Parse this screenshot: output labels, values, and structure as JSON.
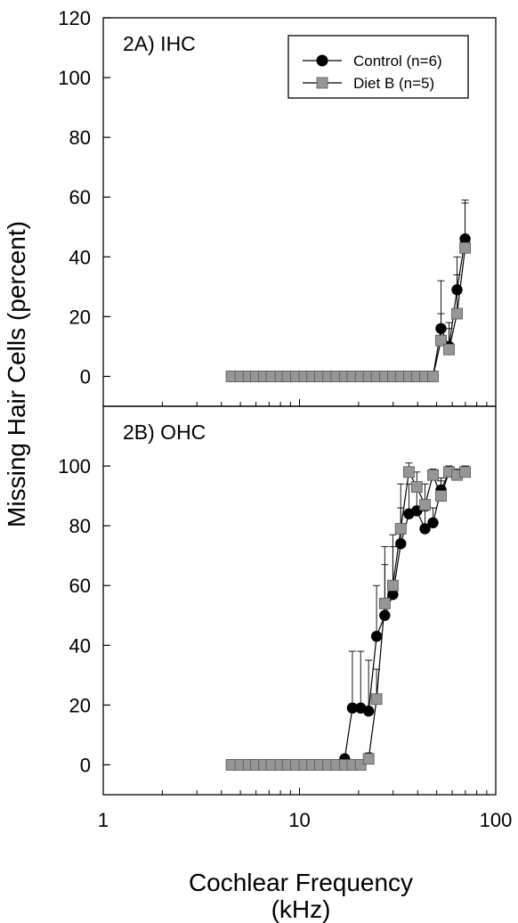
{
  "chart_data": [
    {
      "type": "line",
      "panel_label": "2A) IHC",
      "xscale": "log",
      "xlim": [
        1,
        100
      ],
      "ylim": [
        -10,
        120
      ],
      "yticks": [
        0,
        20,
        40,
        60,
        80,
        100,
        120
      ],
      "grid": false,
      "legend_position": "top-right",
      "series": [
        {
          "name": "Control (n=6)",
          "marker": "circle",
          "color": "#000000",
          "x": [
            4.5,
            5.0,
            5.5,
            6.0,
            6.6,
            7.2,
            8.0,
            8.7,
            9.6,
            10.6,
            11.6,
            12.7,
            14.0,
            15.4,
            17.0,
            18.6,
            20.5,
            22.5,
            24.7,
            27.2,
            29.9,
            32.8,
            36.1,
            39.6,
            43.6,
            47.9,
            52.6,
            57.8,
            63.5,
            69.8
          ],
          "y": [
            0,
            0,
            0,
            0,
            0,
            0,
            0,
            0,
            0,
            0,
            0,
            0,
            0,
            0,
            0,
            0,
            0,
            0,
            0,
            0,
            0,
            0,
            0,
            0,
            0,
            0,
            16,
            10,
            29,
            46
          ],
          "err": [
            0,
            0,
            0,
            0,
            0,
            0,
            0,
            0,
            0,
            0,
            0,
            0,
            0,
            0,
            0,
            0,
            0,
            0,
            0,
            0,
            0,
            0,
            0,
            0,
            0,
            0,
            16,
            8,
            11,
            13
          ]
        },
        {
          "name": "Diet B (n=5)",
          "marker": "square",
          "color": "#969696",
          "x": [
            4.5,
            5.0,
            5.5,
            6.0,
            6.6,
            7.2,
            8.0,
            8.7,
            9.6,
            10.6,
            11.6,
            12.7,
            14.0,
            15.4,
            17.0,
            18.6,
            20.5,
            22.5,
            24.7,
            27.2,
            29.9,
            32.8,
            36.1,
            39.6,
            43.6,
            47.9,
            52.6,
            57.8,
            63.5,
            69.8
          ],
          "y": [
            0,
            0,
            0,
            0,
            0,
            0,
            0,
            0,
            0,
            0,
            0,
            0,
            0,
            0,
            0,
            0,
            0,
            0,
            0,
            0,
            0,
            0,
            0,
            0,
            0,
            0,
            12,
            9,
            21,
            43
          ],
          "err": [
            0,
            0,
            0,
            0,
            0,
            0,
            0,
            0,
            0,
            0,
            0,
            0,
            0,
            0,
            0,
            0,
            0,
            0,
            0,
            0,
            0,
            0,
            0,
            0,
            0,
            0,
            9,
            7,
            13,
            15
          ]
        }
      ]
    },
    {
      "type": "line",
      "panel_label": "2B) OHC",
      "xscale": "log",
      "xlim": [
        1,
        100
      ],
      "ylim": [
        -10,
        120
      ],
      "yticks": [
        0,
        20,
        40,
        60,
        80,
        100
      ],
      "xticks": [
        1,
        10,
        100
      ],
      "xtick_labels": [
        "1",
        "10",
        "100"
      ],
      "grid": false,
      "series": [
        {
          "name": "Control (n=6)",
          "marker": "circle",
          "color": "#000000",
          "x": [
            4.5,
            5.0,
            5.5,
            6.0,
            6.6,
            7.2,
            8.0,
            8.7,
            9.6,
            10.6,
            11.6,
            12.7,
            14.0,
            15.4,
            17.0,
            18.6,
            20.5,
            22.5,
            24.7,
            27.2,
            29.9,
            32.8,
            36.1,
            39.6,
            43.6,
            47.9,
            52.6,
            57.8,
            63.5,
            69.8
          ],
          "y": [
            0,
            0,
            0,
            0,
            0,
            0,
            0,
            0,
            0,
            0,
            0,
            0,
            0,
            0,
            2,
            19,
            19,
            18,
            43,
            50,
            57,
            74,
            84,
            85,
            79,
            81,
            92,
            98,
            97,
            98
          ],
          "err": [
            0,
            0,
            0,
            0,
            0,
            0,
            0,
            0,
            0,
            0,
            0,
            0,
            0,
            0,
            1,
            19,
            19,
            17,
            17,
            17,
            16,
            12,
            10,
            8,
            6,
            5,
            4,
            2,
            2,
            2
          ]
        },
        {
          "name": "Diet B (n=5)",
          "marker": "square",
          "color": "#969696",
          "x": [
            4.5,
            5.0,
            5.5,
            6.0,
            6.6,
            7.2,
            8.0,
            8.7,
            9.6,
            10.6,
            11.6,
            12.7,
            14.0,
            15.4,
            17.0,
            18.6,
            20.5,
            22.5,
            24.7,
            27.2,
            29.9,
            32.8,
            36.1,
            39.6,
            43.6,
            47.9,
            52.6,
            57.8,
            63.5,
            69.8
          ],
          "y": [
            0,
            0,
            0,
            0,
            0,
            0,
            0,
            0,
            0,
            0,
            0,
            0,
            0,
            0,
            0,
            0,
            0,
            2,
            22,
            54,
            60,
            79,
            98,
            93,
            87,
            97,
            90,
            98,
            97,
            98
          ],
          "err": [
            0,
            0,
            0,
            0,
            0,
            0,
            0,
            0,
            0,
            0,
            0,
            0,
            0,
            0,
            0,
            0,
            0,
            2,
            10,
            19,
            17,
            15,
            3,
            5,
            7,
            2,
            5,
            2,
            2,
            2
          ]
        }
      ]
    }
  ],
  "ylabel": "Missing Hair Cells (percent)",
  "xlabel_line1": "Cochlear Frequency",
  "xlabel_line2": "(kHz)"
}
